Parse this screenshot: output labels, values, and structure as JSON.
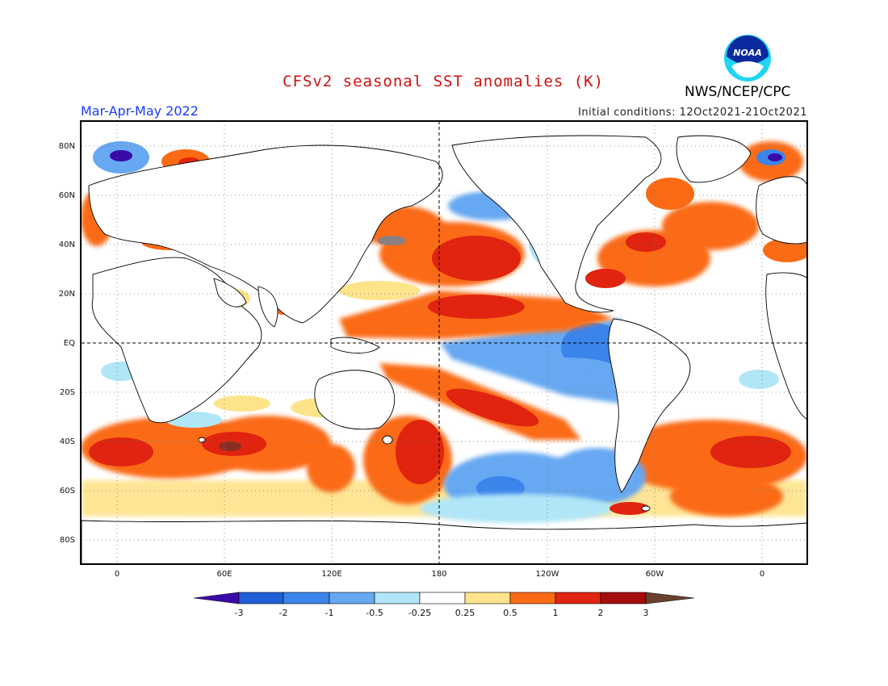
{
  "header": {
    "title": "CFSv2 seasonal SST anomalies (K)",
    "org": "NWS/NCEP/CPC",
    "period": "Mar-Apr-May 2022",
    "initial_conditions": "Initial conditions: 12Oct2021-21Oct2021",
    "logo_text": "NOAA"
  },
  "colors": {
    "title": "#cc1111",
    "period": "#1a3cff",
    "frame": "#000000",
    "land": "#ffffff",
    "coast": "#000000"
  },
  "map": {
    "lat_ticks": [
      "80N",
      "60N",
      "40N",
      "20N",
      "EQ",
      "20S",
      "40S",
      "60S",
      "80S"
    ],
    "lon_ticks": [
      "0",
      "60E",
      "120E",
      "180",
      "120W",
      "60W",
      "0"
    ]
  },
  "colorbar": {
    "labels": [
      "-3",
      "-2",
      "-1",
      "-0.5",
      "-0.25",
      "0.25",
      "0.5",
      "1",
      "2",
      "3"
    ],
    "colors": [
      "#3a0aa8",
      "#1f5fd6",
      "#3b84ea",
      "#66a8f2",
      "#b0e6f7",
      "#ffffff",
      "#fde38a",
      "#fb6a14",
      "#e0240f",
      "#a60d0d",
      "#6b4030"
    ]
  }
}
